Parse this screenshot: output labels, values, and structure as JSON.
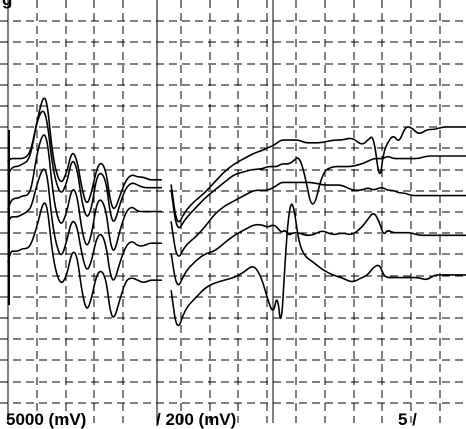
{
  "chart_data": {
    "type": "line",
    "title": "",
    "xlabel": "",
    "ylabel": "",
    "grid": true,
    "labels": {
      "top_left": "g",
      "bottom_left": "5000 (mV)",
      "bottom_mid": "/ 200 (mV)",
      "bottom_right": "5 /"
    },
    "x": [
      0,
      3,
      6,
      10,
      15,
      20,
      24,
      30,
      36,
      40,
      44,
      48,
      54,
      60,
      65,
      70,
      75,
      80,
      85,
      90,
      95,
      100,
      104,
      108,
      114,
      120,
      126,
      132,
      138,
      144,
      148,
      152,
      156,
      160,
      166,
      172,
      180,
      190,
      200,
      210,
      220,
      230,
      240,
      250,
      258,
      264,
      270,
      274,
      278,
      282,
      286,
      290,
      296,
      302,
      310,
      320,
      330,
      340,
      350,
      360,
      366,
      372,
      378,
      382,
      386,
      392,
      398,
      404,
      410,
      418,
      426,
      434,
      442,
      450,
      458,
      466
    ],
    "series": [
      {
        "values": [
          1.1,
          1.5,
          1.5,
          1.5,
          1.6,
          1.6,
          1.8,
          2.5,
          3.4,
          3.2,
          1.8,
          0.8,
          0.2,
          0.6,
          1.5,
          1.4,
          0.0,
          -0.8,
          -0.3,
          0.6,
          0.8,
          0.4,
          -0.8,
          -1.1,
          -0.3,
          0.4,
          0.5,
          0.4,
          0.3,
          0.4,
          0.4,
          0.4,
          0.4,
          null,
          0.0,
          -1.6,
          -0.7,
          -0.3,
          0.1,
          0.3,
          0.4,
          0.5,
          0.7,
          1.0,
          0.5,
          -0.3,
          -0.9,
          -0.1,
          -1.5,
          1.2,
          3.1,
          3.4,
          1.8,
          1.3,
          1.1,
          0.8,
          0.6,
          0.5,
          0.3,
          0.5,
          0.6,
          0.9,
          1.0,
          0.6,
          0.5,
          0.5,
          0.5,
          0.5,
          0.5,
          0.5,
          0.4,
          0.6,
          0.6,
          0.6,
          0.6,
          0.6
        ]
      },
      {
        "values": [
          1.1,
          1.3,
          1.3,
          1.3,
          1.4,
          1.5,
          1.7,
          2.6,
          3.2,
          2.9,
          1.4,
          0.4,
          -0.3,
          0.4,
          1.2,
          1.0,
          -0.1,
          -0.8,
          -0.4,
          0.5,
          0.7,
          0.2,
          -0.9,
          -1.2,
          -0.4,
          0.2,
          0.4,
          0.2,
          0.2,
          0.3,
          0.3,
          0.3,
          0.3,
          null,
          -0.1,
          -1.5,
          -0.8,
          -0.4,
          -0.1,
          0.0,
          0.3,
          0.6,
          0.8,
          1.0,
          1.0,
          0.9,
          1.0,
          0.9,
          0.7,
          0.8,
          0.6,
          0.7,
          0.7,
          0.6,
          0.6,
          0.8,
          0.6,
          0.7,
          0.6,
          0.9,
          1.2,
          1.5,
          1.1,
          0.6,
          0.8,
          0.7,
          0.7,
          0.7,
          0.7,
          0.6,
          0.6,
          0.6,
          0.6,
          0.6,
          0.6,
          0.6
        ]
      },
      {
        "values": [
          0.1,
          0.4,
          0.5,
          0.5,
          0.6,
          0.6,
          0.9,
          2.3,
          3.0,
          2.7,
          1.3,
          0.1,
          -0.6,
          0.0,
          0.9,
          0.7,
          -0.7,
          -1.4,
          -0.9,
          0.3,
          0.5,
          0.0,
          -1.2,
          -1.6,
          -0.7,
          0.0,
          0.2,
          0.0,
          0.0,
          0.0,
          0.0,
          0.0,
          0.0,
          null,
          -0.4,
          -1.9,
          -1.3,
          -1.0,
          -0.6,
          -0.1,
          0.2,
          0.4,
          0.6,
          0.8,
          0.8,
          0.8,
          0.9,
          1.0,
          1.1,
          1.1,
          1.1,
          1.1,
          1.1,
          1.1,
          1.1,
          1.0,
          1.0,
          1.0,
          0.8,
          0.8,
          0.9,
          0.8,
          0.9,
          0.9,
          0.8,
          0.8,
          0.7,
          0.7,
          0.6,
          0.6,
          0.6,
          0.6,
          0.6,
          0.6,
          0.6,
          0.6
        ]
      },
      {
        "values": [
          -0.1,
          0.1,
          0.2,
          0.2,
          0.3,
          0.4,
          0.8,
          2.0,
          2.4,
          1.9,
          0.6,
          -0.3,
          -0.9,
          -0.4,
          0.5,
          0.2,
          -1.1,
          -1.8,
          -1.4,
          -0.2,
          0.0,
          -0.4,
          -1.6,
          -2.0,
          -1.2,
          -0.6,
          -0.4,
          -0.5,
          -0.6,
          -0.6,
          -0.6,
          -0.6,
          -0.6,
          null,
          -0.7,
          -2.3,
          -1.8,
          -1.4,
          -1.0,
          -0.7,
          -0.4,
          -0.1,
          0.0,
          0.1,
          0.1,
          0.2,
          0.2,
          0.2,
          0.3,
          0.3,
          0.3,
          0.4,
          0.6,
          -0.1,
          -1.6,
          0.0,
          0.2,
          0.2,
          0.2,
          0.3,
          0.4,
          0.5,
          0.5,
          0.5,
          0.6,
          0.5,
          0.5,
          0.5,
          0.5,
          0.5,
          0.6,
          0.6,
          0.6,
          0.6,
          0.6,
          0.6
        ]
      },
      {
        "values": [
          -1.1,
          -1.0,
          -1.0,
          -1.0,
          -1.0,
          -0.9,
          -0.6,
          0.5,
          1.4,
          1.1,
          -0.4,
          -1.4,
          -2.0,
          -1.5,
          -0.7,
          -1.0,
          -2.1,
          -2.8,
          -2.3,
          -1.4,
          -1.1,
          -1.5,
          -2.6,
          -3.0,
          -2.4,
          -1.8,
          -1.6,
          -1.7,
          -1.7,
          -1.8,
          -1.8,
          -1.8,
          -1.8,
          null,
          -2.0,
          -3.6,
          -3.0,
          -2.6,
          -2.3,
          -1.9,
          -1.5,
          -1.2,
          -1.0,
          -0.8,
          -0.7,
          -0.6,
          -0.5,
          -0.4,
          -0.3,
          -0.3,
          -0.3,
          -0.3,
          -0.3,
          -0.4,
          -0.4,
          -0.4,
          -0.3,
          -0.3,
          -0.2,
          -0.5,
          -0.3,
          -0.1,
          -1.9,
          -0.8,
          -0.4,
          -0.1,
          -0.4,
          0.2,
          0.2,
          -0.1,
          0.1,
          0.1,
          0.2,
          0.2,
          0.2,
          0.2
        ]
      }
    ],
    "xlim": [
      0,
      466
    ],
    "ylim": [
      -8,
      8
    ],
    "trace_offsets": [
      -3.0,
      -1.5,
      0.0,
      1.5,
      3.0
    ]
  }
}
